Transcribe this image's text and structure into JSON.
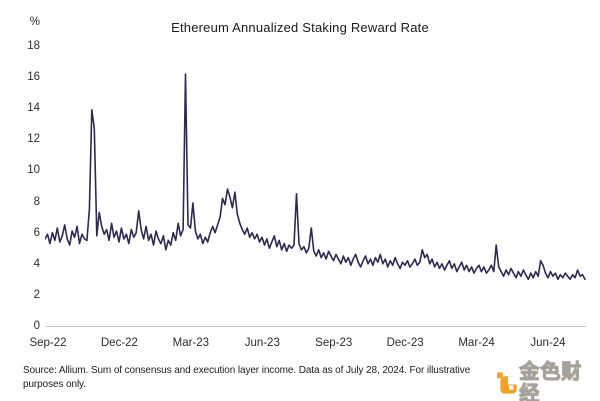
{
  "title": "Ethereum Annualized Staking Reward Rate",
  "y_axis": {
    "unit_label": "%",
    "ticks": [
      18,
      16,
      14,
      12,
      10,
      8,
      6,
      4,
      2,
      0
    ]
  },
  "x_axis": {
    "ticks": [
      "Sep-22",
      "Dec-22",
      "Mar-23",
      "Jun-23",
      "Sep-23",
      "Dec-23",
      "Mar-24",
      "Jun-24"
    ]
  },
  "source": {
    "line1": "Source: Allium. Sum of consensus and execution layer income. Data as of July 28, 2024. For illustrative",
    "line2": "purposes only."
  },
  "watermark": {
    "text": "金色财经",
    "logo": "jinse-finance-logo",
    "logo_color": "#F0A22B"
  },
  "chart_data": {
    "type": "line",
    "title": "Ethereum Annualized Staking Reward Rate",
    "xlabel": "",
    "ylabel": "%",
    "ylim": [
      0,
      18
    ],
    "grid": false,
    "legend": "none",
    "x_range": [
      "Sep-2022",
      "Jul-28-2024"
    ],
    "x_tick_labels": [
      "Sep-22",
      "Dec-22",
      "Mar-23",
      "Jun-23",
      "Sep-23",
      "Dec-23",
      "Mar-24",
      "Jun-24"
    ],
    "line_color": "#2F2950",
    "notable_points": [
      {
        "x": "Nov-2022",
        "value": 13.9
      },
      {
        "x": "Mar-2023",
        "value": 16.2
      },
      {
        "x": "May-2023",
        "value": 8.8
      },
      {
        "x": "Jul-2023",
        "value": 8.5
      },
      {
        "x": "Mar-2024",
        "value": 5.2
      },
      {
        "x": "Jul-2024",
        "value": 3.0
      }
    ],
    "series": [
      {
        "name": "Annualized staking reward rate (%)",
        "values": [
          5.6,
          5.9,
          5.3,
          6.0,
          5.5,
          6.3,
          5.4,
          5.8,
          6.5,
          5.6,
          5.2,
          6.1,
          5.7,
          6.4,
          5.3,
          5.9,
          5.6,
          5.5,
          7.5,
          13.9,
          12.7,
          5.8,
          7.3,
          6.4,
          5.9,
          6.2,
          5.5,
          6.6,
          5.7,
          6.1,
          5.4,
          6.3,
          5.6,
          5.9,
          5.3,
          6.2,
          5.7,
          6.0,
          7.4,
          6.2,
          5.6,
          6.4,
          5.5,
          5.9,
          5.2,
          6.1,
          5.6,
          5.3,
          5.8,
          4.9,
          5.5,
          5.2,
          6.0,
          5.5,
          6.6,
          5.8,
          6.2,
          16.2,
          6.5,
          6.3,
          7.9,
          6.1,
          5.6,
          5.9,
          5.3,
          5.7,
          5.4,
          6.0,
          6.4,
          6.0,
          6.5,
          7.0,
          8.2,
          7.8,
          8.8,
          8.3,
          7.6,
          8.6,
          7.2,
          6.6,
          6.2,
          5.9,
          6.3,
          5.7,
          6.0,
          5.6,
          5.9,
          5.4,
          5.7,
          5.2,
          5.6,
          5.0,
          5.4,
          5.8,
          5.1,
          5.5,
          4.9,
          5.3,
          4.8,
          5.2,
          5.0,
          5.2,
          8.5,
          5.3,
          4.9,
          5.1,
          4.7,
          5.0,
          6.3,
          4.8,
          4.5,
          4.9,
          4.4,
          4.7,
          4.3,
          4.8,
          4.5,
          4.2,
          4.6,
          4.3,
          4.0,
          4.5,
          4.1,
          4.4,
          3.9,
          4.3,
          4.6,
          4.1,
          3.8,
          4.2,
          4.5,
          4.0,
          4.3,
          3.9,
          4.4,
          4.1,
          4.6,
          4.0,
          4.3,
          3.8,
          4.2,
          3.9,
          4.4,
          4.0,
          3.7,
          4.1,
          3.9,
          4.2,
          3.8,
          4.0,
          4.3,
          3.9,
          4.1,
          4.9,
          4.4,
          4.6,
          4.0,
          4.3,
          3.8,
          4.1,
          3.7,
          4.0,
          3.6,
          3.9,
          4.2,
          3.7,
          4.0,
          3.5,
          3.8,
          4.1,
          3.6,
          3.9,
          3.5,
          3.8,
          3.4,
          3.7,
          3.9,
          3.5,
          3.8,
          3.4,
          3.6,
          3.9,
          3.5,
          5.2,
          3.8,
          3.5,
          3.2,
          3.6,
          3.3,
          3.7,
          3.4,
          3.1,
          3.5,
          3.2,
          3.6,
          3.3,
          3.0,
          3.4,
          3.1,
          3.5,
          3.2,
          4.2,
          3.9,
          3.4,
          3.1,
          3.5,
          3.2,
          3.4,
          3.0,
          3.3,
          3.1,
          3.4,
          3.2,
          3.0,
          3.3,
          3.1,
          3.6,
          3.2,
          3.3,
          3.0
        ]
      }
    ]
  }
}
